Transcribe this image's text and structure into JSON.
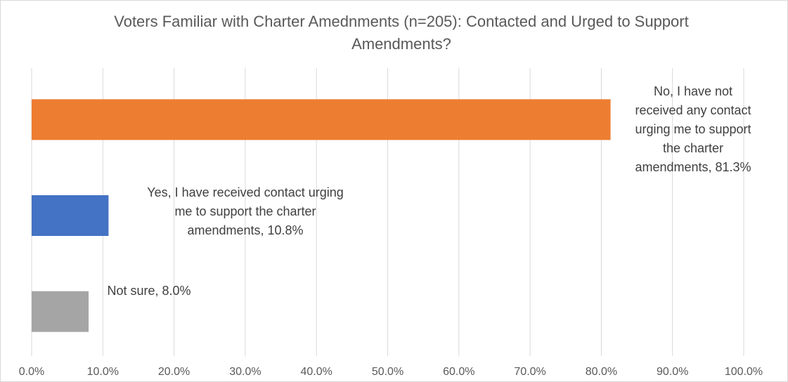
{
  "chart_data": {
    "type": "bar",
    "orientation": "horizontal",
    "title": "Voters Familiar with Charter Amednments (n=205): Contacted and Urged to Support Amendments?",
    "xlabel": "",
    "ylabel": "",
    "xlim": [
      0,
      100
    ],
    "x_ticks": [
      "0.0%",
      "10.0%",
      "20.0%",
      "30.0%",
      "40.0%",
      "50.0%",
      "60.0%",
      "70.0%",
      "80.0%",
      "90.0%",
      "100.0%"
    ],
    "grid": true,
    "legend": "none",
    "categories": [
      "No, I have not received any contact urging me to support the charter amendments",
      "Yes, I have received contact urging me to support the charter amendments",
      "Not sure"
    ],
    "values": [
      81.3,
      10.8,
      8.0
    ],
    "colors": [
      "#ed7d31",
      "#4472c4",
      "#a5a5a5"
    ],
    "data_labels": [
      [
        "No, I have not",
        "received any contact",
        "urging me to support",
        "the charter",
        "amendments, 81.3%"
      ],
      [
        "Yes, I have received contact urging",
        "me to support the charter",
        "amendments, 10.8%"
      ],
      [
        "Not sure, 8.0%"
      ]
    ]
  }
}
